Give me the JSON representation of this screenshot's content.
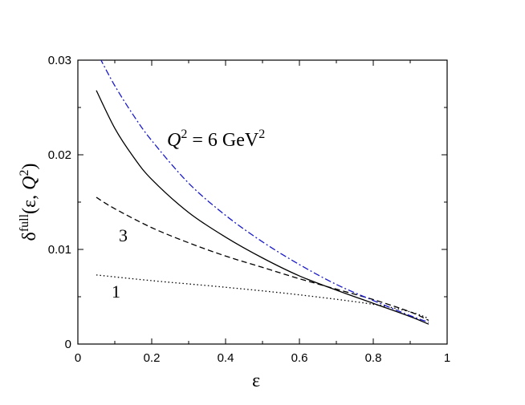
{
  "chart_data": {
    "type": "line",
    "xlabel": "ε",
    "ylabel": {
      "base": "δ",
      "sup": "full",
      "args_open": "(ε, ",
      "q": "Q",
      "q_sup": "2",
      "args_close": ")"
    },
    "annotation": {
      "q": "Q",
      "q_sup": "2",
      "eq": " = 6 GeV",
      "unit_sup": "2"
    },
    "xlim": [
      0,
      1
    ],
    "ylim": [
      0,
      0.03
    ],
    "xticks": [
      0,
      0.2,
      0.4,
      0.6,
      0.8,
      1
    ],
    "xtick_labels": [
      "0",
      "0.2",
      "0.4",
      "0.6",
      "0.8",
      "1"
    ],
    "yticks": [
      0,
      0.01,
      0.02,
      0.03
    ],
    "ytick_labels": [
      "0",
      "0.01",
      "0.02",
      "0.03"
    ],
    "grid": false,
    "series": [
      {
        "label": "",
        "style": "solid",
        "color": "#000000",
        "x": [
          0.05,
          0.1,
          0.15,
          0.2,
          0.3,
          0.4,
          0.5,
          0.6,
          0.7,
          0.8,
          0.9,
          0.95
        ],
        "y": [
          0.0268,
          0.0228,
          0.0198,
          0.0174,
          0.0139,
          0.0113,
          0.0091,
          0.0072,
          0.0057,
          0.0043,
          0.0029,
          0.0021
        ]
      },
      {
        "label": "3",
        "style": "dashed",
        "color": "#000000",
        "x": [
          0.05,
          0.1,
          0.2,
          0.3,
          0.4,
          0.5,
          0.6,
          0.7,
          0.8,
          0.9,
          0.95
        ],
        "y": [
          0.0155,
          0.0143,
          0.0123,
          0.0107,
          0.0093,
          0.0081,
          0.0069,
          0.0058,
          0.0047,
          0.0034,
          0.0025
        ]
      },
      {
        "label": "1",
        "style": "dotted",
        "color": "#000000",
        "x": [
          0.05,
          0.2,
          0.4,
          0.6,
          0.8,
          0.9,
          0.95
        ],
        "y": [
          0.0073,
          0.0067,
          0.006,
          0.0052,
          0.0042,
          0.0034,
          0.0027
        ]
      },
      {
        "label": "",
        "style": "dashdot",
        "color": "#1a1acc",
        "x": [
          0.06,
          0.1,
          0.15,
          0.2,
          0.3,
          0.4,
          0.5,
          0.6,
          0.7,
          0.8,
          0.9,
          0.95
        ],
        "y": [
          0.0302,
          0.0273,
          0.0242,
          0.0215,
          0.017,
          0.0136,
          0.0108,
          0.0084,
          0.0063,
          0.0046,
          0.003,
          0.0023
        ]
      }
    ]
  }
}
